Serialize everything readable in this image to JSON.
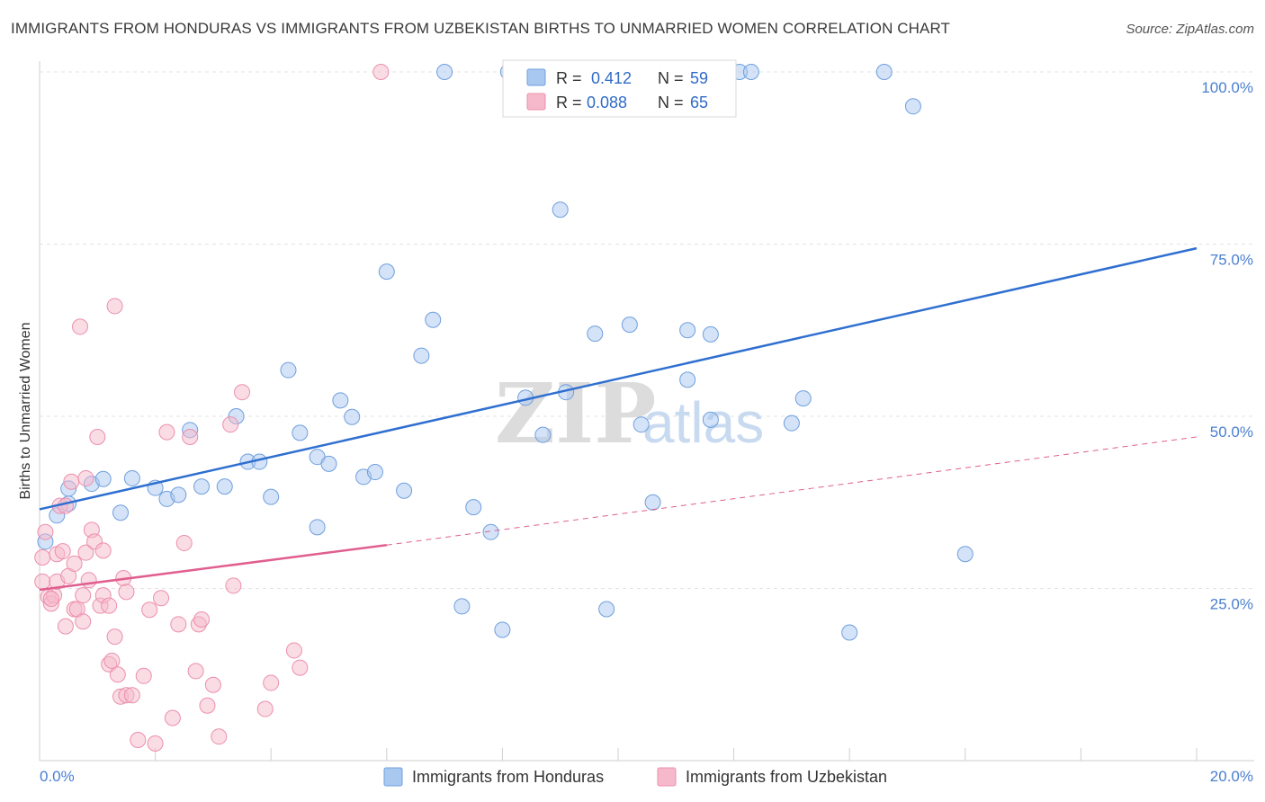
{
  "header": {
    "title": "IMMIGRANTS FROM HONDURAS VS IMMIGRANTS FROM UZBEKISTAN BIRTHS TO UNMARRIED WOMEN CORRELATION CHART",
    "source": "Source: ZipAtlas.com"
  },
  "watermark": {
    "part1": "ZIP",
    "part2": "atlas"
  },
  "legend": {
    "r_label": "R =",
    "n_label": "N =",
    "entries": [
      {
        "r": "0.412",
        "n": "59",
        "color": "#a9c8f0"
      },
      {
        "r": "0.088",
        "n": "65",
        "color": "#f6b9cc"
      }
    ]
  },
  "chart_data": {
    "type": "scatter",
    "title": "IMMIGRANTS FROM HONDURAS VS IMMIGRANTS FROM UZBEKISTAN BIRTHS TO UNMARRIED WOMEN CORRELATION CHART",
    "xlabel": "",
    "ylabel": "Births to Unmarried Women",
    "xlim": [
      0,
      20
    ],
    "ylim": [
      0,
      100
    ],
    "x_tick_labels": [
      "0.0%",
      "20.0%"
    ],
    "y_tick_labels": [
      "25.0%",
      "50.0%",
      "75.0%",
      "100.0%"
    ],
    "y_ticks": [
      25,
      50,
      75,
      100
    ],
    "grid": true,
    "legend_position": "top-center",
    "series": [
      {
        "name": "Immigrants from Honduras",
        "color": "#a9c8f0",
        "stroke": "#6f9fde",
        "trend": {
          "x": [
            0,
            20
          ],
          "y": [
            36.5,
            74.4
          ],
          "color": "#2f6fd0"
        },
        "points": [
          [
            0.1,
            31.8
          ],
          [
            0.3,
            35.6
          ],
          [
            0.5,
            37.3
          ],
          [
            0.5,
            39.5
          ],
          [
            0.9,
            40.2
          ],
          [
            1.1,
            40.9
          ],
          [
            1.6,
            41.0
          ],
          [
            1.4,
            36.0
          ],
          [
            2.0,
            39.6
          ],
          [
            2.2,
            38.0
          ],
          [
            2.4,
            38.6
          ],
          [
            2.6,
            48.0
          ],
          [
            2.8,
            39.8
          ],
          [
            3.2,
            39.8
          ],
          [
            3.4,
            50.0
          ],
          [
            3.6,
            43.4
          ],
          [
            3.8,
            43.4
          ],
          [
            4.0,
            38.3
          ],
          [
            4.3,
            56.7
          ],
          [
            4.5,
            47.6
          ],
          [
            4.8,
            33.9
          ],
          [
            4.8,
            44.1
          ],
          [
            5.0,
            43.1
          ],
          [
            5.2,
            52.3
          ],
          [
            5.4,
            49.9
          ],
          [
            5.6,
            41.2
          ],
          [
            5.8,
            41.9
          ],
          [
            6.0,
            71.0
          ],
          [
            6.3,
            39.2
          ],
          [
            6.6,
            58.8
          ],
          [
            6.8,
            64.0
          ],
          [
            7.0,
            100.0
          ],
          [
            7.3,
            22.4
          ],
          [
            7.5,
            36.8
          ],
          [
            7.8,
            33.2
          ],
          [
            8.0,
            19.0
          ],
          [
            8.4,
            52.7
          ],
          [
            8.7,
            47.3
          ],
          [
            9.1,
            53.5
          ],
          [
            9.0,
            80.0
          ],
          [
            9.6,
            62.0
          ],
          [
            9.8,
            22.0
          ],
          [
            10.2,
            63.3
          ],
          [
            10.4,
            48.8
          ],
          [
            10.6,
            37.5
          ],
          [
            11.2,
            55.3
          ],
          [
            11.2,
            62.5
          ],
          [
            11.6,
            61.9
          ],
          [
            11.6,
            49.5
          ],
          [
            12.1,
            100.0
          ],
          [
            13.0,
            49.0
          ],
          [
            13.2,
            52.6
          ],
          [
            14.0,
            18.6
          ],
          [
            14.6,
            100.0
          ],
          [
            15.1,
            95.0
          ],
          [
            16.0,
            30.0
          ],
          [
            8.1,
            100.0
          ],
          [
            10.5,
            100.0
          ],
          [
            12.3,
            100.0
          ]
        ]
      },
      {
        "name": "Immigrants from Uzbekistan",
        "color": "#f6b9cc",
        "stroke": "#ec8fad",
        "trend": {
          "x": [
            0,
            6.0
          ],
          "y": [
            24.8,
            31.3
          ],
          "dash_to": [
            20,
            47.0
          ],
          "color": "#e05f8f"
        },
        "points": [
          [
            0.05,
            26.0
          ],
          [
            0.05,
            29.5
          ],
          [
            0.1,
            33.2
          ],
          [
            0.15,
            23.8
          ],
          [
            0.2,
            22.8
          ],
          [
            0.25,
            24.0
          ],
          [
            0.3,
            30.0
          ],
          [
            0.3,
            26.0
          ],
          [
            0.35,
            37.0
          ],
          [
            0.4,
            30.4
          ],
          [
            0.45,
            19.5
          ],
          [
            0.5,
            26.8
          ],
          [
            0.55,
            40.5
          ],
          [
            0.6,
            22.0
          ],
          [
            0.6,
            28.6
          ],
          [
            0.65,
            22.0
          ],
          [
            0.7,
            63.0
          ],
          [
            0.75,
            20.2
          ],
          [
            0.75,
            24.0
          ],
          [
            0.8,
            30.2
          ],
          [
            0.8,
            41.0
          ],
          [
            0.85,
            26.2
          ],
          [
            0.9,
            33.5
          ],
          [
            0.95,
            31.8
          ],
          [
            1.0,
            47.0
          ],
          [
            1.05,
            22.5
          ],
          [
            1.1,
            30.5
          ],
          [
            1.1,
            24.0
          ],
          [
            1.2,
            22.5
          ],
          [
            1.2,
            14.0
          ],
          [
            1.25,
            14.5
          ],
          [
            1.3,
            18.0
          ],
          [
            1.35,
            12.5
          ],
          [
            1.4,
            9.3
          ],
          [
            1.45,
            26.5
          ],
          [
            1.5,
            24.5
          ],
          [
            1.5,
            9.5
          ],
          [
            1.6,
            9.5
          ],
          [
            1.7,
            3.0
          ],
          [
            1.8,
            12.3
          ],
          [
            1.9,
            21.9
          ],
          [
            2.0,
            2.5
          ],
          [
            2.1,
            23.6
          ],
          [
            2.2,
            47.7
          ],
          [
            2.3,
            6.2
          ],
          [
            2.4,
            19.8
          ],
          [
            2.5,
            31.6
          ],
          [
            2.6,
            47.0
          ],
          [
            2.7,
            13.0
          ],
          [
            2.75,
            19.8
          ],
          [
            2.8,
            20.5
          ],
          [
            2.9,
            8.0
          ],
          [
            3.0,
            11.0
          ],
          [
            3.1,
            3.5
          ],
          [
            3.3,
            48.8
          ],
          [
            3.35,
            25.4
          ],
          [
            3.5,
            53.5
          ],
          [
            3.9,
            7.5
          ],
          [
            4.0,
            11.3
          ],
          [
            4.4,
            16.0
          ],
          [
            4.5,
            13.5
          ],
          [
            5.9,
            100.0
          ],
          [
            0.2,
            23.5
          ],
          [
            1.3,
            66.0
          ],
          [
            0.45,
            37.0
          ]
        ]
      }
    ]
  },
  "bottom_legend": {
    "items": [
      {
        "label": "Immigrants from Honduras",
        "color": "#a9c8f0"
      },
      {
        "label": "Immigrants from Uzbekistan",
        "color": "#f6b9cc"
      }
    ]
  }
}
